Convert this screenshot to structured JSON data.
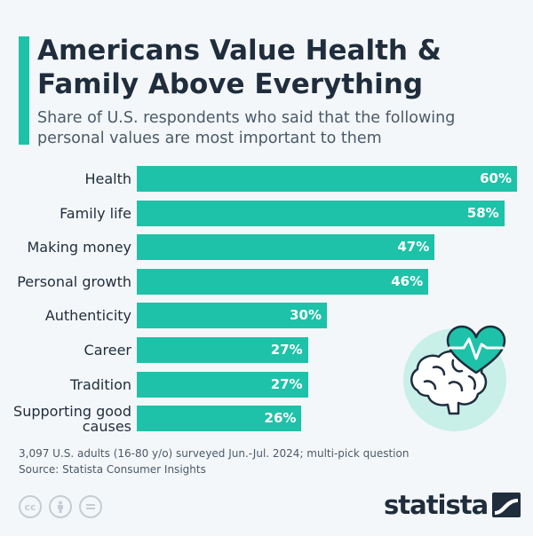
{
  "header": {
    "title": "Americans Value Health & Family Above Everything",
    "subtitle": "Share of U.S. respondents who said that the following personal values are most important to them"
  },
  "chart_data": {
    "type": "bar",
    "orientation": "horizontal",
    "categories": [
      "Health",
      "Family life",
      "Making money",
      "Personal growth",
      "Authenticity",
      "Career",
      "Tradition",
      "Supporting good causes"
    ],
    "values": [
      60,
      58,
      47,
      46,
      30,
      27,
      27,
      26
    ],
    "value_labels": [
      "60%",
      "58%",
      "47%",
      "46%",
      "30%",
      "27%",
      "27%",
      "26%"
    ],
    "unit": "%",
    "xlim": [
      0,
      60
    ],
    "grid": false,
    "legend": "none",
    "bar_color": "#1ec2a8"
  },
  "footer": {
    "note": "3,097 U.S. adults (16-80 y/o) surveyed Jun.-Jul. 2024; multi-pick question",
    "source": "Source: Statista Consumer Insights",
    "license_icons": [
      "cc-icon",
      "attribution-icon",
      "no-derivatives-icon"
    ],
    "brand": "statista"
  },
  "colors": {
    "accent": "#1ec2a8",
    "title": "#1f2d3d",
    "background": "#f4f7f9",
    "heart": "#1ec2a8",
    "circle": "#c9efe9"
  }
}
